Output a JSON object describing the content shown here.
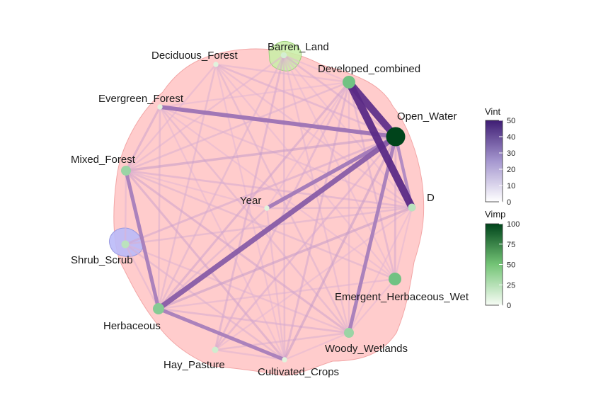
{
  "nodes": [
    {
      "id": "Barren_Land",
      "label": "Barren_Land",
      "vimp": 8
    },
    {
      "id": "Deciduous_Forest",
      "label": "Deciduous_Forest",
      "vimp": 2
    },
    {
      "id": "Developed_combined",
      "label": "Developed_combined",
      "vimp": 55
    },
    {
      "id": "Evergreen_Forest",
      "label": "Evergreen_Forest",
      "vimp": 2
    },
    {
      "id": "Open_Water",
      "label": "Open_Water",
      "vimp": 100
    },
    {
      "id": "Mixed_Forest",
      "label": "Mixed_Forest",
      "vimp": 35
    },
    {
      "id": "Year",
      "label": "Year",
      "vimp": 2
    },
    {
      "id": "D",
      "label": "D",
      "vimp": 20
    },
    {
      "id": "Shrub_Scrub",
      "label": "Shrub_Scrub",
      "vimp": 20
    },
    {
      "id": "Emergent_Herbaceous_Wet",
      "label": "Emergent_Herbaceous_Wet",
      "vimp": 55
    },
    {
      "id": "Herbaceous",
      "label": "Herbaceous",
      "vimp": 45
    },
    {
      "id": "Woody_Wetlands",
      "label": "Woody_Wetlands",
      "vimp": 35
    },
    {
      "id": "Hay_Pasture",
      "label": "Hay_Pasture",
      "vimp": 10
    },
    {
      "id": "Cultivated_Crops",
      "label": "Cultivated_Crops",
      "vimp": 2
    }
  ],
  "edges": [
    {
      "source": "Developed_combined",
      "target": "D",
      "vint": 50
    },
    {
      "source": "Developed_combined",
      "target": "Open_Water",
      "vint": 48
    },
    {
      "source": "Herbaceous",
      "target": "Open_Water",
      "vint": 32
    },
    {
      "source": "Evergreen_Forest",
      "target": "Open_Water",
      "vint": 24
    },
    {
      "source": "Year",
      "target": "Open_Water",
      "vint": 22
    },
    {
      "source": "Open_Water",
      "target": "Woody_Wetlands",
      "vint": 20
    },
    {
      "source": "Mixed_Forest",
      "target": "Herbaceous",
      "vint": 20
    },
    {
      "source": "Herbaceous",
      "target": "Cultivated_Crops",
      "vint": 20
    },
    {
      "source": "Open_Water",
      "target": "D",
      "vint": 16
    },
    {
      "source": "Open_Water",
      "target": "Cultivated_Crops",
      "vint": 11
    },
    {
      "source": "Herbaceous",
      "target": "D",
      "vint": 11
    },
    {
      "source": "Mixed_Forest",
      "target": "Open_Water",
      "vint": 11
    },
    {
      "source": "Developed_combined",
      "target": "Herbaceous",
      "vint": 9
    },
    {
      "source": "Mixed_Forest",
      "target": "Cultivated_Crops",
      "vint": 9
    },
    {
      "source": "Evergreen_Forest",
      "target": "Mixed_Forest",
      "vint": 9
    },
    {
      "source": "Mixed_Forest",
      "target": "Woody_Wetlands",
      "vint": 9
    },
    {
      "source": "Developed_combined",
      "target": "Cultivated_Crops",
      "vint": 8
    },
    {
      "source": "Barren_Land",
      "target": "Hay_Pasture",
      "vint": 8
    },
    {
      "source": "Shrub_Scrub",
      "target": "Open_Water",
      "vint": 8
    },
    {
      "source": "Open_Water",
      "target": "Emergent_Herbaceous_Wet",
      "vint": 8
    },
    {
      "source": "Developed_combined",
      "target": "Hay_Pasture",
      "vint": 7
    },
    {
      "source": "Barren_Land",
      "target": "Open_Water",
      "vint": 7
    },
    {
      "source": "Deciduous_Forest",
      "target": "Open_Water",
      "vint": 7
    },
    {
      "source": "Herbaceous",
      "target": "Woody_Wetlands",
      "vint": 7
    },
    {
      "source": "Mixed_Forest",
      "target": "D",
      "vint": 7
    },
    {
      "source": "Developed_combined",
      "target": "Emergent_Herbaceous_Wet",
      "vint": 7
    },
    {
      "source": "Hay_Pasture",
      "target": "Open_Water",
      "vint": 7
    },
    {
      "source": "Evergreen_Forest",
      "target": "Herbaceous",
      "vint": 6
    },
    {
      "source": "Year",
      "target": "Herbaceous",
      "vint": 6
    },
    {
      "source": "Mixed_Forest",
      "target": "Emergent_Herbaceous_Wet",
      "vint": 6
    },
    {
      "source": "Deciduous_Forest",
      "target": "Herbaceous",
      "vint": 6
    },
    {
      "source": "Barren_Land",
      "target": "Herbaceous",
      "vint": 6
    },
    {
      "source": "Barren_Land",
      "target": "Cultivated_Crops",
      "vint": 6
    },
    {
      "source": "Deciduous_Forest",
      "target": "Woody_Wetlands",
      "vint": 6
    },
    {
      "source": "Evergreen_Forest",
      "target": "Woody_Wetlands",
      "vint": 6
    },
    {
      "source": "Year",
      "target": "D",
      "vint": 6
    },
    {
      "source": "Shrub_Scrub",
      "target": "D",
      "vint": 6
    },
    {
      "source": "Shrub_Scrub",
      "target": "Cultivated_Crops",
      "vint": 6
    },
    {
      "source": "Hay_Pasture",
      "target": "Woody_Wetlands",
      "vint": 6
    },
    {
      "source": "Developed_combined",
      "target": "Mixed_Forest",
      "vint": 6
    },
    {
      "source": "Deciduous_Forest",
      "target": "Mixed_Forest",
      "vint": 5
    },
    {
      "source": "Evergreen_Forest",
      "target": "D",
      "vint": 5
    },
    {
      "source": "Deciduous_Forest",
      "target": "D",
      "vint": 5
    },
    {
      "source": "Barren_Land",
      "target": "Woody_Wetlands",
      "vint": 5
    },
    {
      "source": "Herbaceous",
      "target": "Emergent_Herbaceous_Wet",
      "vint": 5
    },
    {
      "source": "Hay_Pasture",
      "target": "Cultivated_Crops",
      "vint": 5
    },
    {
      "source": "Year",
      "target": "Cultivated_Crops",
      "vint": 5
    },
    {
      "source": "Shrub_Scrub",
      "target": "Woody_Wetlands",
      "vint": 5
    },
    {
      "source": "Developed_combined",
      "target": "Woody_Wetlands",
      "vint": 5
    },
    {
      "source": "Deciduous_Forest",
      "target": "Developed_combined",
      "vint": 5
    },
    {
      "source": "Barren_Land",
      "target": "Mixed_Forest",
      "vint": 5
    },
    {
      "source": "Mixed_Forest",
      "target": "Shrub_Scrub",
      "vint": 5
    },
    {
      "source": "Shrub_Scrub",
      "target": "Herbaceous",
      "vint": 5
    },
    {
      "source": "Evergreen_Forest",
      "target": "Developed_combined",
      "vint": 4
    },
    {
      "source": "Barren_Land",
      "target": "Developed_combined",
      "vint": 4
    },
    {
      "source": "Year",
      "target": "Mixed_Forest",
      "vint": 4
    },
    {
      "source": "Emergent_Herbaceous_Wet",
      "target": "Woody_Wetlands",
      "vint": 4
    },
    {
      "source": "Cultivated_Crops",
      "target": "Woody_Wetlands",
      "vint": 4
    },
    {
      "source": "D",
      "target": "Emergent_Herbaceous_Wet",
      "vint": 4
    },
    {
      "source": "D",
      "target": "Woody_Wetlands",
      "vint": 4
    },
    {
      "source": "Evergreen_Forest",
      "target": "Cultivated_Crops",
      "vint": 4
    },
    {
      "source": "Deciduous_Forest",
      "target": "Cultivated_Crops",
      "vint": 4
    },
    {
      "source": "Evergreen_Forest",
      "target": "Emergent_Herbaceous_Wet",
      "vint": 4
    },
    {
      "source": "Deciduous_Forest",
      "target": "Emergent_Herbaceous_Wet",
      "vint": 4
    },
    {
      "source": "Barren_Land",
      "target": "Emergent_Herbaceous_Wet",
      "vint": 4
    },
    {
      "source": "Developed_combined",
      "target": "Year",
      "vint": 4
    },
    {
      "source": "Barren_Land",
      "target": "D",
      "vint": 4
    },
    {
      "source": "Hay_Pasture",
      "target": "D",
      "vint": 4
    }
  ],
  "legend": {
    "vint": {
      "title": "Vint",
      "ticks": [
        "50",
        "40",
        "30",
        "20",
        "10",
        "0"
      ],
      "max": 50,
      "low_color": "#f4f2f9",
      "high_color": "#3f1d74"
    },
    "vimp": {
      "title": "Vimp",
      "ticks": [
        "100",
        "75",
        "50",
        "25",
        "0"
      ],
      "max": 100,
      "low_color": "#eff9ec",
      "high_color": "#00441b"
    }
  },
  "colors": {
    "group_hull": "#ffb3b3",
    "group_green": "#c9f0b0",
    "group_blue": "#b6b6f5"
  }
}
